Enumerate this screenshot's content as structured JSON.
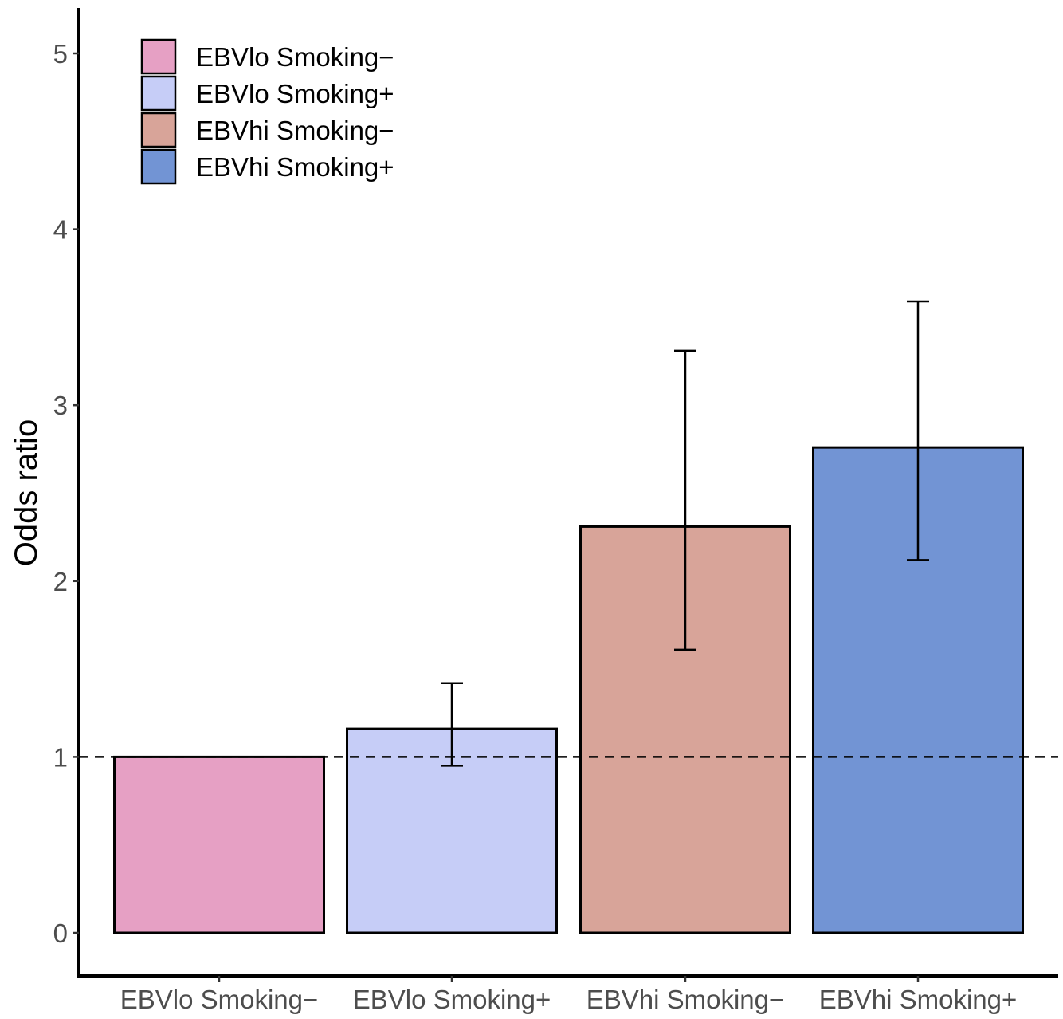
{
  "chart_data": {
    "type": "bar",
    "categories": [
      "EBVlo Smoking−",
      "EBVlo Smoking+",
      "EBVhi Smoking−",
      "EBVhi Smoking+"
    ],
    "values": [
      1.0,
      1.16,
      2.31,
      2.76
    ],
    "error_low": [
      null,
      0.95,
      1.61,
      2.12
    ],
    "error_high": [
      null,
      1.42,
      3.31,
      3.59
    ],
    "colors": [
      "#E6A0C4",
      "#C6CDF7",
      "#D8A499",
      "#7294D4"
    ],
    "title": "",
    "xlabel": "",
    "ylabel": "Odds ratio",
    "ylim": [
      -0.24,
      5.24
    ],
    "yticks": [
      0,
      1,
      2,
      3,
      4,
      5
    ],
    "reference_line": 1,
    "grid": false,
    "legend": {
      "position": "top-left",
      "entries": [
        "EBVlo Smoking−",
        "EBVlo Smoking+",
        "EBVhi Smoking−",
        "EBVhi Smoking+"
      ]
    }
  }
}
